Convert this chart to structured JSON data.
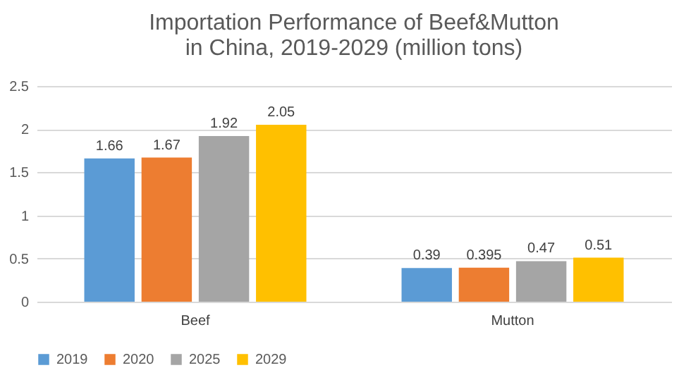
{
  "chart_data": {
    "type": "bar",
    "title": "Importation Performance of Beef&Mutton in China, 2019-2029 (million tons)",
    "categories": [
      "Beef",
      "Mutton"
    ],
    "series": [
      {
        "name": "2019",
        "color": "#5b9bd5",
        "values": [
          1.66,
          0.39
        ]
      },
      {
        "name": "2020",
        "color": "#ed7d31",
        "values": [
          1.67,
          0.395
        ]
      },
      {
        "name": "2025",
        "color": "#a5a5a5",
        "values": [
          1.92,
          0.47
        ]
      },
      {
        "name": "2029",
        "color": "#ffc000",
        "values": [
          2.05,
          0.51
        ]
      }
    ],
    "ylim": [
      0,
      2.5
    ],
    "yticks": [
      0,
      0.5,
      1,
      1.5,
      2,
      2.5
    ],
    "grid": "y",
    "legend": "bottom",
    "data_labels": true
  }
}
